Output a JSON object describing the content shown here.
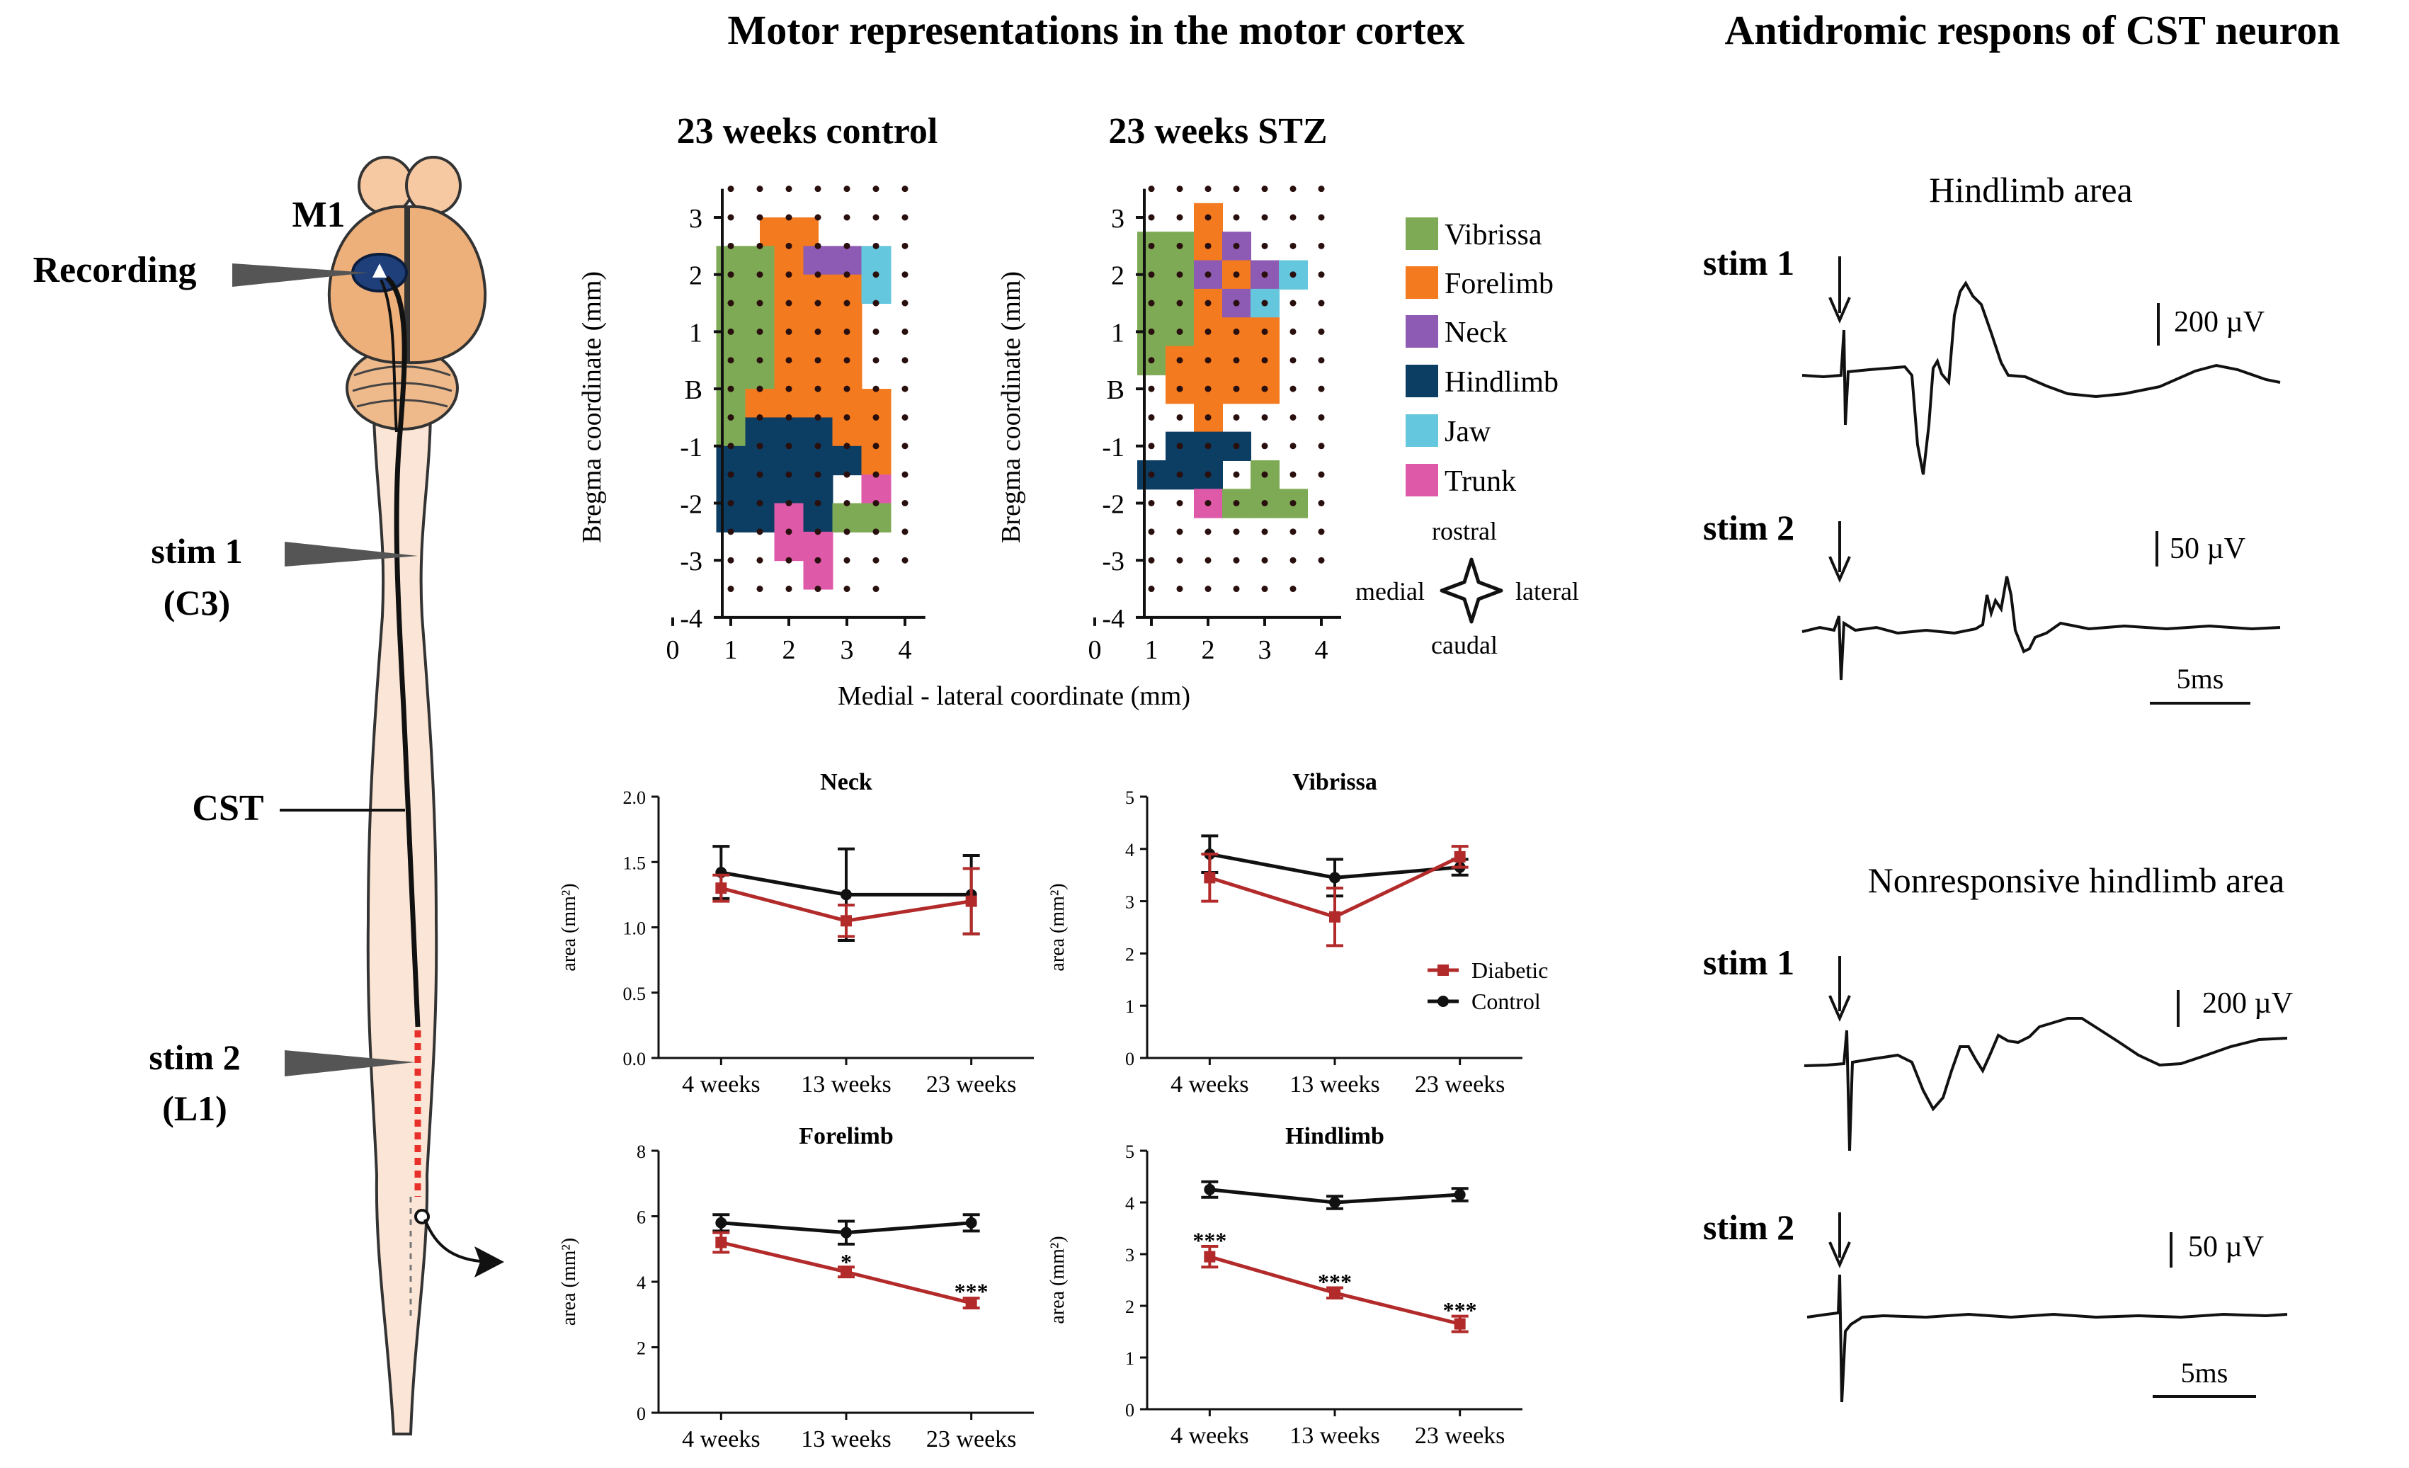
{
  "headers": {
    "motor_cortex": "Motor representations in the motor cortex",
    "antidromic": "Antidromic respons of CST neuron"
  },
  "schematic": {
    "m1": "M1",
    "recording": "Recording",
    "stim1": "stim 1",
    "stim1_level": "(C3)",
    "cst": "CST",
    "stim2": "stim 2",
    "stim2_level": "(L1)"
  },
  "maps": {
    "control_title": "23 weeks control",
    "stz_title": "23 weeks STZ",
    "y_axis_label": "Bregma coordinate (mm)",
    "x_axis_label": "Medial - lateral coordinate (mm)",
    "y_ticks": [
      "3",
      "2",
      "1",
      "B",
      "-1",
      "-2",
      "-3",
      "-4"
    ],
    "x_ticks": [
      "0",
      "1",
      "2",
      "3",
      "4"
    ],
    "legend": [
      {
        "label": "Vibrissa",
        "color": "#7faa55"
      },
      {
        "label": "Forelimb",
        "color": "#f47a1f"
      },
      {
        "label": "Neck",
        "color": "#8d5bb3"
      },
      {
        "label": "Hindlimb",
        "color": "#0c3d62"
      },
      {
        "label": "Jaw",
        "color": "#65c7de"
      },
      {
        "label": "Trunk",
        "color": "#de5aa9"
      }
    ],
    "orientation": {
      "rostral": "rostral",
      "caudal": "caudal",
      "medial": "medial",
      "lateral": "lateral"
    }
  },
  "chart_data": [
    {
      "type": "line",
      "title": "Neck",
      "ylabel": "area (mm²)",
      "categories": [
        "4 weeks",
        "13 weeks",
        "23 weeks"
      ],
      "ylim": [
        0,
        2.0
      ],
      "yticks": [
        "0.0",
        "0.5",
        "1.0",
        "1.5",
        "2.0"
      ],
      "series": [
        {
          "name": "Control",
          "color": "#111111",
          "values": [
            1.42,
            1.25,
            1.25
          ],
          "err": [
            0.2,
            0.35,
            0.3
          ]
        },
        {
          "name": "Diabetic",
          "color": "#b22a2a",
          "values": [
            1.3,
            1.05,
            1.2
          ],
          "err": [
            0.1,
            0.12,
            0.25
          ]
        }
      ],
      "annotations": []
    },
    {
      "type": "line",
      "title": "Vibrissa",
      "ylabel": "area (mm²)",
      "categories": [
        "4 weeks",
        "13 weeks",
        "23 weeks"
      ],
      "ylim": [
        0,
        5
      ],
      "yticks": [
        "0",
        "1",
        "2",
        "3",
        "4",
        "5"
      ],
      "series": [
        {
          "name": "Control",
          "color": "#111111",
          "values": [
            3.9,
            3.45,
            3.65
          ],
          "err": [
            0.35,
            0.35,
            0.15
          ]
        },
        {
          "name": "Diabetic",
          "color": "#b22a2a",
          "values": [
            3.45,
            2.7,
            3.85
          ],
          "err": [
            0.45,
            0.55,
            0.2
          ]
        }
      ],
      "annotations": []
    },
    {
      "type": "line",
      "title": "Forelimb",
      "ylabel": "area (mm²)",
      "categories": [
        "4 weeks",
        "13 weeks",
        "23 weeks"
      ],
      "ylim": [
        0,
        8
      ],
      "yticks": [
        "0",
        "2",
        "4",
        "6",
        "8"
      ],
      "series": [
        {
          "name": "Control",
          "color": "#111111",
          "values": [
            5.8,
            5.5,
            5.8
          ],
          "err": [
            0.25,
            0.35,
            0.25
          ]
        },
        {
          "name": "Diabetic",
          "color": "#b22a2a",
          "values": [
            5.2,
            4.3,
            3.35
          ],
          "err": [
            0.3,
            0.15,
            0.15
          ]
        }
      ],
      "annotations": [
        {
          "text": "*",
          "category": "13 weeks",
          "y": 4.5
        },
        {
          "text": "***",
          "category": "23 weeks",
          "y": 3.6
        }
      ]
    },
    {
      "type": "line",
      "title": "Hindlimb",
      "ylabel": "area (mm²)",
      "categories": [
        "4 weeks",
        "13 weeks",
        "23 weeks"
      ],
      "ylim": [
        0,
        5
      ],
      "yticks": [
        "0",
        "1",
        "2",
        "3",
        "4",
        "5"
      ],
      "series": [
        {
          "name": "Control",
          "color": "#111111",
          "values": [
            4.25,
            4.0,
            4.15
          ],
          "err": [
            0.15,
            0.12,
            0.12
          ]
        },
        {
          "name": "Diabetic",
          "color": "#b22a2a",
          "values": [
            2.95,
            2.25,
            1.65
          ],
          "err": [
            0.2,
            0.1,
            0.15
          ]
        }
      ],
      "annotations": [
        {
          "text": "***",
          "category": "4 weeks",
          "y": 3.2
        },
        {
          "text": "***",
          "category": "13 weeks",
          "y": 2.4
        },
        {
          "text": "***",
          "category": "23 weeks",
          "y": 1.85
        }
      ]
    }
  ],
  "chart_legend": {
    "diabetic": "Diabetic",
    "control": "Control"
  },
  "traces": {
    "hindlimb_title": "Hindlimb area",
    "nonresponsive_title": "Nonresponsive hindlimb area",
    "stim1": "stim 1",
    "stim2": "stim 2",
    "scale_200": "200 µV",
    "scale_50": "50 µV",
    "time_scale": "5ms"
  }
}
